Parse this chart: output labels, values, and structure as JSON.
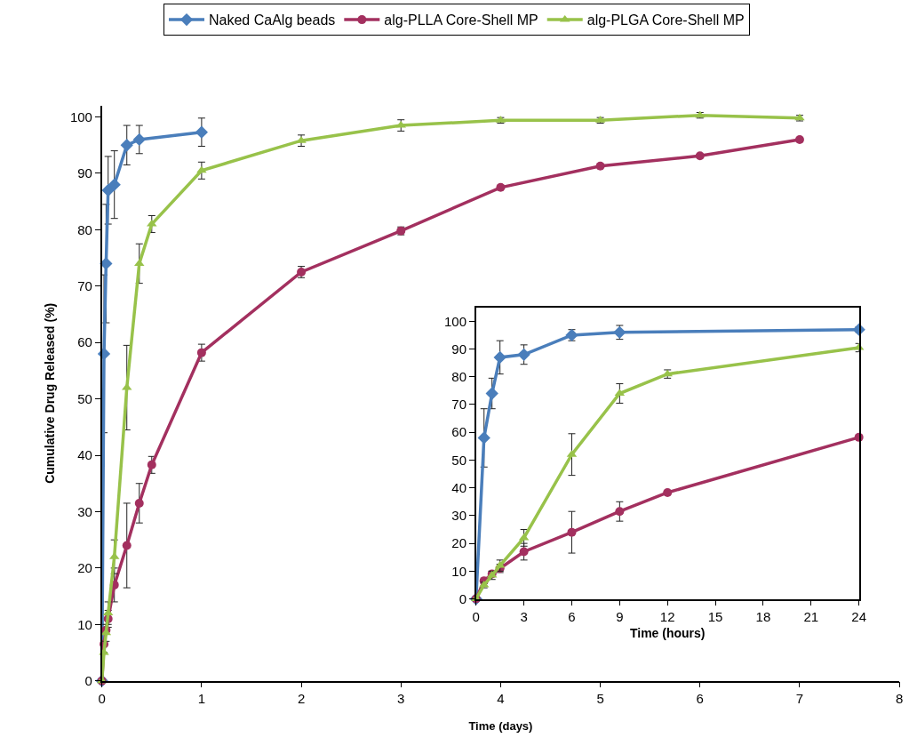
{
  "chart_data": [
    {
      "type": "line",
      "xlabel": "Time (days)",
      "ylabel": "Cumulative Drug Released (%)",
      "xlim": [
        0,
        8
      ],
      "xticks": [
        0,
        1,
        2,
        3,
        4,
        5,
        6,
        7,
        8
      ],
      "ylim": [
        0,
        102
      ],
      "yticks": [
        0,
        10,
        20,
        30,
        40,
        50,
        60,
        70,
        80,
        90,
        100
      ],
      "legend": "top",
      "series": [
        {
          "name": "Naked CaAlg beads",
          "color": "#4a7ebb",
          "marker": "diamond",
          "x": [
            0,
            0.0208,
            0.0417,
            0.0625,
            0.125,
            0.25,
            0.375,
            1
          ],
          "values": [
            0,
            58,
            74,
            87,
            88,
            95,
            96,
            97.3
          ],
          "errors": [
            null,
            14,
            10.5,
            6,
            6,
            3.5,
            2.5,
            2.5
          ]
        },
        {
          "name": "alg-PLLA Core-Shell MP",
          "color": "#a3305f",
          "marker": "circle",
          "x": [
            0,
            0.0208,
            0.0417,
            0.0625,
            0.125,
            0.25,
            0.375,
            0.5,
            1,
            2,
            3,
            4,
            5,
            6,
            7
          ],
          "values": [
            0,
            6.5,
            9,
            11,
            17,
            24,
            31.5,
            38.3,
            58.2,
            72.5,
            79.8,
            87.5,
            91.3,
            93.1,
            96
          ],
          "errors": [
            null,
            null,
            null,
            1.5,
            3,
            7.5,
            3.5,
            1.5,
            1.5,
            1,
            0.7,
            null,
            null,
            null,
            null
          ]
        },
        {
          "name": "alg-PLGA Core-Shell MP",
          "color": "#98c24a",
          "marker": "triangle",
          "x": [
            0,
            0.0208,
            0.0417,
            0.0625,
            0.125,
            0.25,
            0.375,
            0.5,
            1,
            2,
            3,
            4,
            5,
            6,
            7
          ],
          "values": [
            0,
            5,
            8.5,
            12,
            22,
            52,
            74,
            81,
            90.5,
            95.8,
            98.5,
            99.4,
            99.4,
            100.3,
            99.8
          ],
          "errors": [
            null,
            null,
            1.5,
            2,
            3,
            7.5,
            3.5,
            1.5,
            1.5,
            1,
            1,
            0.5,
            0.5,
            0.5,
            0.5
          ]
        }
      ]
    },
    {
      "type": "line",
      "xlabel": "Time (hours)",
      "xlim": [
        0,
        24
      ],
      "xticks": [
        0,
        3,
        6,
        9,
        12,
        15,
        18,
        21,
        24
      ],
      "ylim": [
        0,
        105
      ],
      "yticks": [
        0,
        10,
        20,
        30,
        40,
        50,
        60,
        70,
        80,
        90,
        100
      ],
      "series": [
        {
          "color": "#4a7ebb",
          "marker": "diamond",
          "x": [
            0,
            0.5,
            1,
            1.5,
            3,
            6,
            9,
            24
          ],
          "values": [
            0,
            58,
            74,
            87,
            88,
            95,
            96,
            97
          ],
          "errors": [
            null,
            10.5,
            5.5,
            6,
            3.5,
            2,
            2.5,
            1
          ]
        },
        {
          "color": "#a3305f",
          "marker": "circle",
          "x": [
            0,
            0.5,
            1,
            1.5,
            3,
            6,
            9,
            12,
            24
          ],
          "values": [
            0,
            6.5,
            9,
            11,
            17,
            24,
            31.5,
            38.3,
            58.2
          ],
          "errors": [
            null,
            1,
            1,
            1.5,
            3,
            7.5,
            3.5,
            null,
            null
          ]
        },
        {
          "color": "#98c24a",
          "marker": "triangle",
          "x": [
            0,
            0.5,
            1,
            1.5,
            3,
            6,
            9,
            12,
            24
          ],
          "values": [
            0,
            5,
            8.5,
            12,
            22,
            52,
            74,
            81,
            90.5
          ],
          "errors": [
            null,
            1,
            1.5,
            2,
            3,
            7.5,
            3.5,
            1.5,
            1.5
          ]
        }
      ]
    }
  ]
}
